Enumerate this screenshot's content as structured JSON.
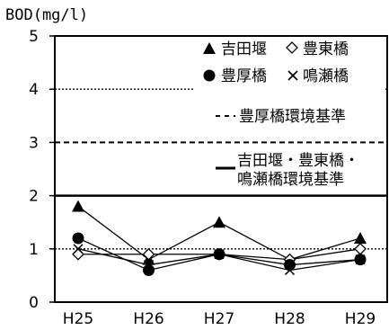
{
  "chart_data": {
    "type": "line",
    "ylabel": "BOD(mg/l)",
    "ylim": [
      0,
      5
    ],
    "yticks": [
      "0",
      "1",
      "2",
      "3",
      "4",
      "5"
    ],
    "categories": [
      "H25",
      "H26",
      "H27",
      "H28",
      "H29"
    ],
    "grid": false,
    "series": [
      {
        "name": "吉田堰",
        "marker": "triangle",
        "values": [
          1.8,
          0.8,
          1.5,
          0.8,
          1.2
        ]
      },
      {
        "name": "豊東橋",
        "marker": "diamond",
        "values": [
          0.9,
          0.9,
          0.9,
          0.8,
          1.0
        ]
      },
      {
        "name": "豊厚橋",
        "marker": "circle",
        "values": [
          1.2,
          0.6,
          0.9,
          0.7,
          0.8
        ]
      },
      {
        "name": "鳴瀬橋",
        "marker": "x",
        "values": [
          1.0,
          0.7,
          0.9,
          0.6,
          0.8
        ]
      }
    ],
    "reference_lines": [
      {
        "value": 1,
        "style": "dotted"
      },
      {
        "value": 2,
        "style": "solid",
        "label_line1": "吉田堰・豊東橋・",
        "label_line2": "鳴瀬橋環境基準"
      },
      {
        "value": 3,
        "style": "dashed",
        "label": "豊厚橋環境基準"
      },
      {
        "value": 4,
        "style": "dotted"
      }
    ],
    "legend": {
      "position": "top-right",
      "items": [
        {
          "symbol": "▲",
          "label": "吉田堰"
        },
        {
          "symbol": "◇",
          "label": "豊東橋"
        },
        {
          "symbol": "●",
          "label": "豊厚橋"
        },
        {
          "symbol": "×",
          "label": "鳴瀬橋"
        }
      ],
      "dash_symbol": "- -",
      "line_symbol": "—"
    },
    "colors": {
      "line": "#000000",
      "background": "#ffffff"
    }
  }
}
